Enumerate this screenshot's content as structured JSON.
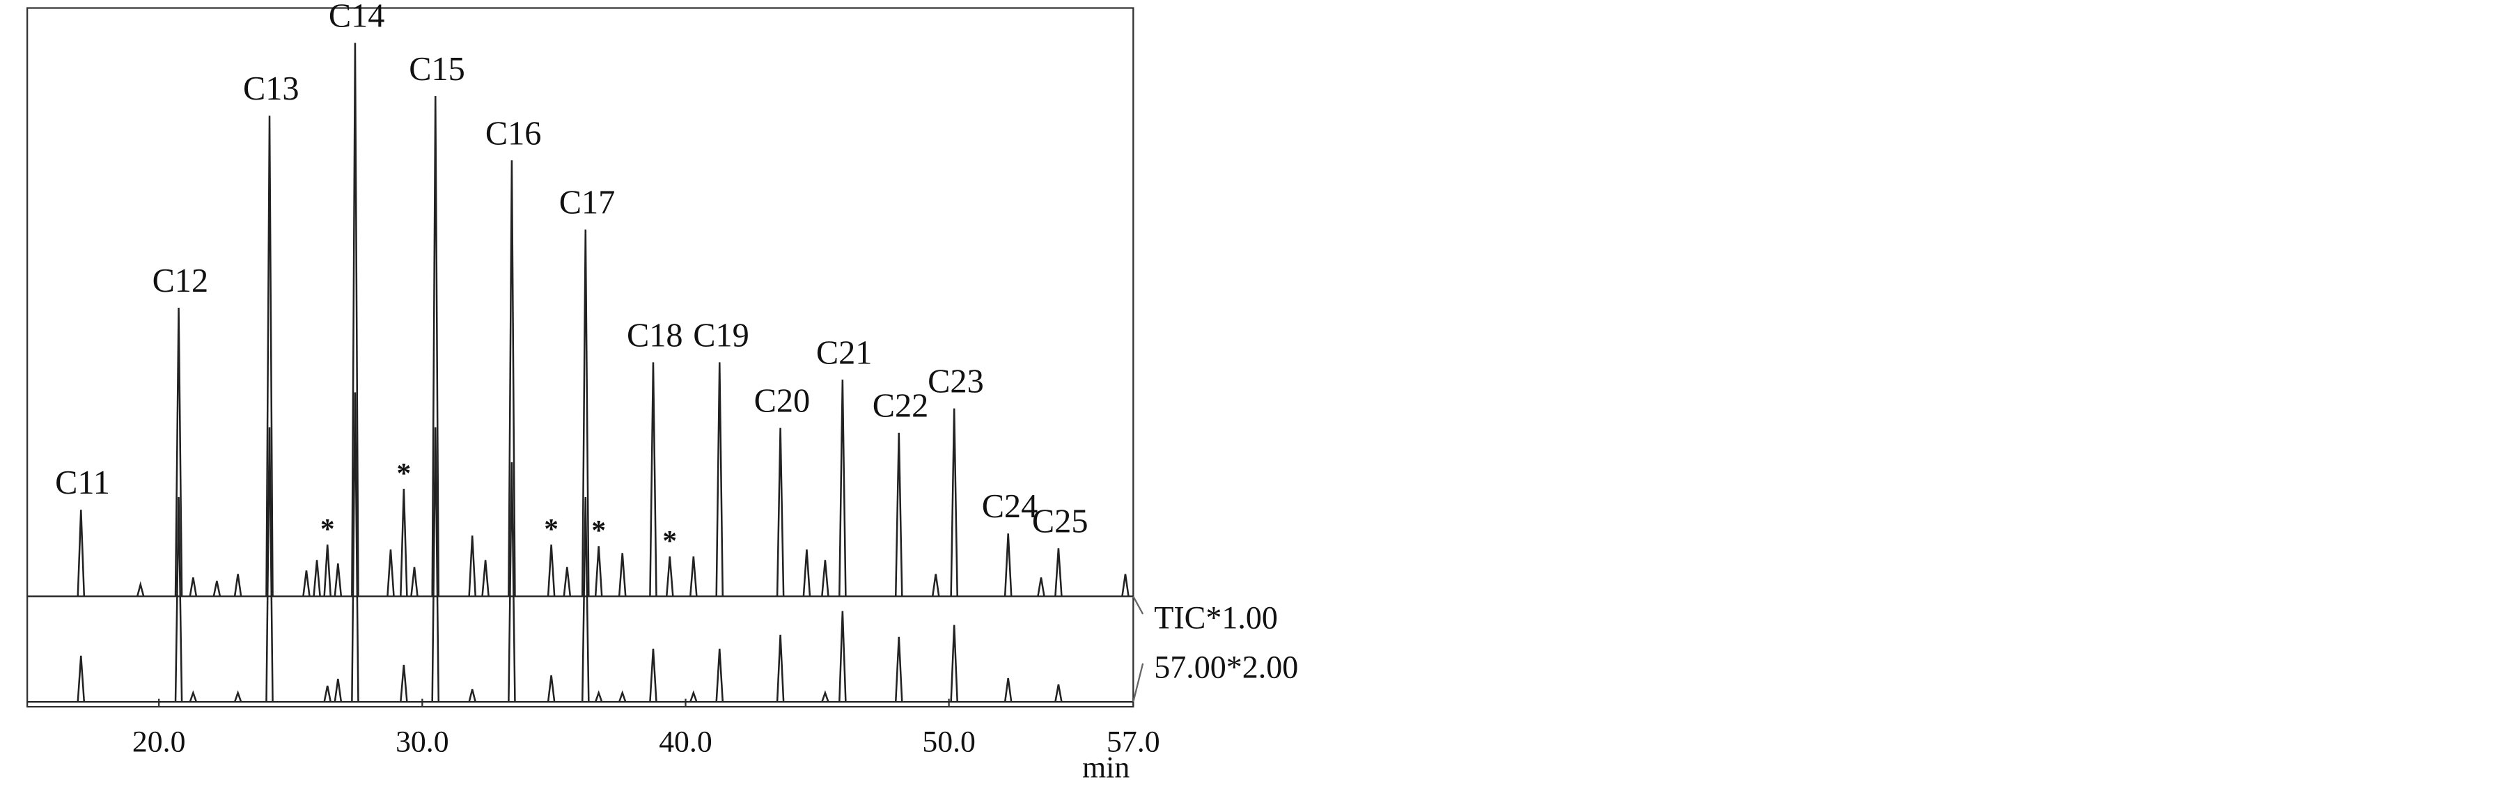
{
  "chart_data": {
    "type": "line",
    "x_label": "min",
    "xlim": [
      15,
      57
    ],
    "ylim": [
      0,
      100
    ],
    "xticks": [
      {
        "value": 20,
        "label": "20.0"
      },
      {
        "value": 30,
        "label": "30.0"
      },
      {
        "value": 40,
        "label": "40.0"
      },
      {
        "value": 50,
        "label": "50.0"
      },
      {
        "value": 57,
        "label": "57.0"
      }
    ],
    "series": [
      {
        "name": "TIC*1.00",
        "color": "#222222",
        "baseline": 15.8,
        "x": [
          17.04,
          19.3,
          20.75,
          21.3,
          22.2,
          23.0,
          24.2,
          25.6,
          26.0,
          26.4,
          26.8,
          27.45,
          28.8,
          29.3,
          29.7,
          30.5,
          31.9,
          32.4,
          33.4,
          34.9,
          35.5,
          36.2,
          36.7,
          37.6,
          38.77,
          39.4,
          40.3,
          41.29,
          43.6,
          44.6,
          45.3,
          45.96,
          48.1,
          49.5,
          50.2,
          52.25,
          53.5,
          54.16,
          56.7
        ],
        "values": [
          28.2,
          17.5,
          57.1,
          18.5,
          18,
          19,
          84.6,
          19.5,
          21,
          23.2,
          20.5,
          95.0,
          22.5,
          31.2,
          20,
          87.4,
          24.5,
          21,
          78.2,
          23.2,
          20,
          68.3,
          23,
          22,
          49.3,
          21.5,
          21.5,
          49.3,
          39.9,
          22.5,
          21,
          46.8,
          39.2,
          19,
          42.7,
          24.8,
          18.5,
          22.7,
          19
        ],
        "labels": [
          "C11",
          null,
          "C12",
          null,
          null,
          null,
          "C13",
          null,
          null,
          "*",
          null,
          "C14",
          null,
          "*",
          null,
          "C15",
          null,
          null,
          "C16",
          "*",
          null,
          "C17",
          "*",
          null,
          "C18",
          "*",
          null,
          "C19",
          "C20",
          null,
          null,
          "C21",
          "C22",
          null,
          "C23",
          "C24",
          null,
          "C25",
          null
        ]
      },
      {
        "name": "57.00*2.00",
        "color": "#222222",
        "baseline": 0.7,
        "x": [
          17.04,
          20.75,
          21.3,
          23.0,
          24.2,
          26.4,
          26.8,
          27.45,
          29.3,
          30.5,
          31.9,
          33.4,
          34.9,
          36.2,
          36.7,
          37.6,
          38.77,
          40.3,
          41.29,
          43.6,
          45.3,
          45.96,
          48.1,
          50.2,
          52.25,
          54.16
        ],
        "values": [
          7.3,
          30,
          2,
          2,
          40,
          3,
          4,
          45,
          6,
          40,
          2.5,
          35,
          4.5,
          30,
          2,
          2,
          8.3,
          2,
          8.3,
          10.3,
          2,
          13.7,
          10,
          11.7,
          4.1,
          3.2
        ]
      }
    ]
  }
}
